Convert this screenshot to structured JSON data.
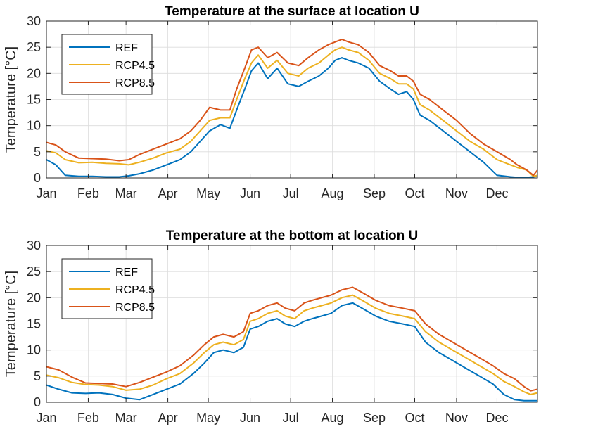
{
  "chart_data": [
    {
      "type": "line",
      "title": "Temperature at the surface at location U",
      "xlabel": "",
      "ylabel": "Temperature [°C]",
      "ylim": [
        0,
        30
      ],
      "yticks": [
        "0",
        "5",
        "10",
        "15",
        "20",
        "25",
        "30"
      ],
      "xlim": [
        1,
        365
      ],
      "xtick_labels": [
        "Jan",
        "Feb",
        "Mar",
        "Apr",
        "May",
        "Jun",
        "Jul",
        "Aug",
        "Sep",
        "Oct",
        "Nov",
        "Dec"
      ],
      "xtick_days": [
        1,
        32,
        60,
        91,
        121,
        152,
        182,
        213,
        244,
        274,
        305,
        335
      ],
      "grid": true,
      "legend_position": "top-left",
      "series": [
        {
          "name": "REF",
          "color": "#0072BD",
          "x": [
            1,
            8,
            15,
            25,
            35,
            45,
            55,
            62,
            70,
            80,
            90,
            100,
            108,
            115,
            122,
            130,
            137,
            142,
            148,
            153,
            158,
            165,
            172,
            180,
            188,
            195,
            203,
            210,
            215,
            220,
            225,
            232,
            240,
            248,
            256,
            262,
            268,
            273,
            278,
            285,
            295,
            305,
            315,
            325,
            335,
            345,
            350,
            357,
            362,
            365
          ],
          "y": [
            3.5,
            2.5,
            0.5,
            0.3,
            0.3,
            0.2,
            0.2,
            0.4,
            0.8,
            1.5,
            2.5,
            3.5,
            5.0,
            7.0,
            9.0,
            10.2,
            9.5,
            13.0,
            17.0,
            20.5,
            22.0,
            19.0,
            21.0,
            18.0,
            17.5,
            18.5,
            19.5,
            21.0,
            22.5,
            23.0,
            22.5,
            22.0,
            21.0,
            18.5,
            17.0,
            16.0,
            16.5,
            15.0,
            12.0,
            11.0,
            9.0,
            7.0,
            5.0,
            3.0,
            0.5,
            0.2,
            0.1,
            0.1,
            0.2,
            0.4
          ]
        },
        {
          "name": "RCP4.5",
          "color": "#EDB120",
          "x": [
            1,
            8,
            15,
            25,
            35,
            45,
            55,
            62,
            70,
            80,
            90,
            100,
            108,
            115,
            122,
            130,
            137,
            142,
            148,
            153,
            158,
            165,
            172,
            180,
            188,
            195,
            203,
            210,
            215,
            220,
            225,
            232,
            240,
            248,
            256,
            262,
            268,
            273,
            278,
            285,
            295,
            305,
            315,
            325,
            335,
            345,
            350,
            357,
            362,
            365
          ],
          "y": [
            5.2,
            4.8,
            3.5,
            2.9,
            3.0,
            2.8,
            2.7,
            2.5,
            3.0,
            3.8,
            4.8,
            5.5,
            7.0,
            9.0,
            11.0,
            11.5,
            11.5,
            15.0,
            19.0,
            22.0,
            23.5,
            21.0,
            22.5,
            20.0,
            19.5,
            21.0,
            22.0,
            23.5,
            24.5,
            25.0,
            24.5,
            24.0,
            22.5,
            20.0,
            19.0,
            18.0,
            18.0,
            17.0,
            14.0,
            13.0,
            11.0,
            9.0,
            7.0,
            5.5,
            3.5,
            2.5,
            2.0,
            1.5,
            0.3,
            0.5
          ]
        },
        {
          "name": "RCP8.5",
          "color": "#D95319",
          "x": [
            1,
            8,
            15,
            25,
            35,
            45,
            55,
            62,
            70,
            80,
            90,
            100,
            108,
            115,
            122,
            130,
            137,
            142,
            148,
            153,
            158,
            165,
            172,
            180,
            188,
            195,
            203,
            210,
            215,
            220,
            225,
            232,
            240,
            248,
            256,
            262,
            268,
            273,
            278,
            285,
            295,
            305,
            315,
            325,
            335,
            345,
            350,
            357,
            362,
            365
          ],
          "y": [
            6.8,
            6.3,
            5.0,
            3.8,
            3.7,
            3.6,
            3.3,
            3.5,
            4.5,
            5.5,
            6.5,
            7.5,
            9.0,
            11.0,
            13.5,
            13.0,
            13.0,
            17.0,
            21.0,
            24.5,
            25.0,
            23.0,
            24.0,
            22.0,
            21.5,
            23.0,
            24.5,
            25.5,
            26.0,
            26.5,
            26.0,
            25.5,
            24.0,
            21.5,
            20.5,
            19.5,
            19.5,
            18.5,
            16.0,
            15.0,
            13.0,
            11.0,
            8.5,
            6.5,
            5.0,
            3.5,
            2.5,
            1.5,
            0.5,
            1.5
          ]
        }
      ]
    },
    {
      "type": "line",
      "title": "Temperature at the bottom at location U",
      "xlabel": "",
      "ylabel": "Temperature [°C]",
      "ylim": [
        0,
        30
      ],
      "yticks": [
        "0",
        "5",
        "10",
        "15",
        "20",
        "25",
        "30"
      ],
      "xlim": [
        1,
        365
      ],
      "xtick_labels": [
        "Jan",
        "Feb",
        "Mar",
        "Apr",
        "May",
        "Jun",
        "Jul",
        "Aug",
        "Sep",
        "Oct",
        "Nov",
        "Dec"
      ],
      "xtick_days": [
        1,
        32,
        60,
        91,
        121,
        152,
        182,
        213,
        244,
        274,
        305,
        335
      ],
      "grid": true,
      "legend_position": "top-left",
      "series": [
        {
          "name": "REF",
          "color": "#0072BD",
          "x": [
            1,
            10,
            20,
            30,
            40,
            50,
            60,
            70,
            80,
            90,
            100,
            110,
            118,
            125,
            132,
            140,
            147,
            152,
            158,
            165,
            172,
            178,
            185,
            192,
            198,
            205,
            212,
            220,
            228,
            235,
            245,
            255,
            265,
            274,
            282,
            292,
            302,
            312,
            322,
            332,
            340,
            348,
            355,
            360,
            365
          ],
          "y": [
            3.3,
            2.5,
            1.8,
            1.7,
            1.8,
            1.5,
            0.8,
            0.5,
            1.5,
            2.5,
            3.5,
            5.5,
            7.5,
            9.5,
            10.0,
            9.5,
            10.5,
            14.0,
            14.5,
            15.5,
            16.0,
            15.0,
            14.5,
            15.5,
            16.0,
            16.5,
            17.0,
            18.5,
            19.0,
            18.0,
            16.5,
            15.5,
            15.0,
            14.5,
            11.5,
            9.5,
            8.0,
            6.5,
            5.0,
            3.5,
            1.5,
            0.5,
            0.3,
            0.3,
            0.3
          ]
        },
        {
          "name": "RCP4.5",
          "color": "#EDB120",
          "x": [
            1,
            10,
            20,
            30,
            40,
            50,
            60,
            70,
            80,
            90,
            100,
            110,
            118,
            125,
            132,
            140,
            147,
            152,
            158,
            165,
            172,
            178,
            185,
            192,
            198,
            205,
            212,
            220,
            228,
            235,
            245,
            255,
            265,
            274,
            282,
            292,
            302,
            312,
            322,
            332,
            340,
            348,
            355,
            360,
            365
          ],
          "y": [
            5.2,
            4.7,
            3.8,
            3.4,
            3.3,
            3.0,
            2.3,
            2.5,
            3.3,
            4.5,
            5.5,
            7.5,
            9.5,
            11.0,
            11.5,
            11.0,
            12.0,
            15.5,
            16.0,
            17.0,
            17.5,
            16.5,
            16.0,
            17.5,
            18.0,
            18.5,
            19.0,
            20.0,
            20.5,
            19.5,
            18.0,
            17.0,
            16.5,
            16.0,
            13.5,
            11.5,
            10.0,
            8.5,
            7.0,
            5.5,
            4.0,
            3.0,
            2.0,
            1.5,
            1.8
          ]
        },
        {
          "name": "RCP8.5",
          "color": "#D95319",
          "x": [
            1,
            10,
            20,
            30,
            40,
            50,
            60,
            70,
            80,
            90,
            100,
            110,
            118,
            125,
            132,
            140,
            147,
            152,
            158,
            165,
            172,
            178,
            185,
            192,
            198,
            205,
            212,
            220,
            228,
            235,
            245,
            255,
            265,
            274,
            282,
            292,
            302,
            312,
            322,
            332,
            340,
            348,
            355,
            360,
            365
          ],
          "y": [
            6.8,
            6.2,
            4.8,
            3.7,
            3.6,
            3.5,
            3.0,
            3.8,
            4.8,
            5.8,
            7.0,
            9.0,
            11.0,
            12.5,
            13.0,
            12.5,
            13.5,
            17.0,
            17.5,
            18.5,
            19.0,
            18.0,
            17.5,
            19.0,
            19.5,
            20.0,
            20.5,
            21.5,
            22.0,
            21.0,
            19.5,
            18.5,
            18.0,
            17.5,
            15.0,
            13.0,
            11.5,
            10.0,
            8.5,
            7.0,
            5.5,
            4.5,
            3.0,
            2.2,
            2.5
          ]
        }
      ]
    }
  ]
}
